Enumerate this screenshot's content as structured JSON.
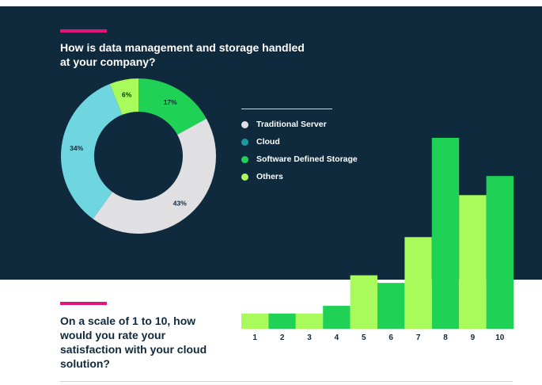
{
  "question1": {
    "title": "How is data management and storage handled at your company?"
  },
  "question2": {
    "title": "On a scale of 1 to 10, how would you rate your satisfaction with your cloud solution?"
  },
  "colors": {
    "background_dark": "#0f2a3d",
    "accent": "#e0147a",
    "traditional_server": "#e0e0e2",
    "cloud": "#6fd6e0",
    "software_defined_storage": "#1fd155",
    "others": "#a8fb5a"
  },
  "chart_data": [
    {
      "type": "pie",
      "title": "How is data management and storage handled at your company?",
      "donut": true,
      "legend_position": "right",
      "slices": [
        {
          "label": "Software Defined Storage",
          "value": 17,
          "display": "17%",
          "color": "#1fd155"
        },
        {
          "label": "Traditional Server",
          "value": 43,
          "display": "43%",
          "color": "#e0e0e2"
        },
        {
          "label": "Cloud",
          "value": 34,
          "display": "34%",
          "color": "#6fd6e0"
        },
        {
          "label": "Others",
          "value": 6,
          "display": "6%",
          "color": "#a8fb5a"
        }
      ],
      "legend": [
        {
          "label": "Traditional Server",
          "color": "#e0e0e2"
        },
        {
          "label": "Cloud",
          "color": "#1a9aa0"
        },
        {
          "label": "Software Defined Storage",
          "color": "#1fd155"
        },
        {
          "label": "Others",
          "color": "#a8fb5a"
        }
      ]
    },
    {
      "type": "bar",
      "title": "On a scale of 1 to 10, how would you rate your satisfaction with your cloud solution?",
      "categories": [
        "1",
        "2",
        "3",
        "4",
        "5",
        "6",
        "7",
        "8",
        "9",
        "10"
      ],
      "values": [
        2,
        2,
        2,
        3,
        7,
        6,
        12,
        25,
        17.5,
        20
      ],
      "colors": [
        "#a8fb5a",
        "#1fd155",
        "#a8fb5a",
        "#1fd155",
        "#a8fb5a",
        "#1fd155",
        "#a8fb5a",
        "#1fd155",
        "#a8fb5a",
        "#1fd155"
      ],
      "ylim": [
        0,
        25
      ],
      "grid": false,
      "legend": false
    }
  ]
}
